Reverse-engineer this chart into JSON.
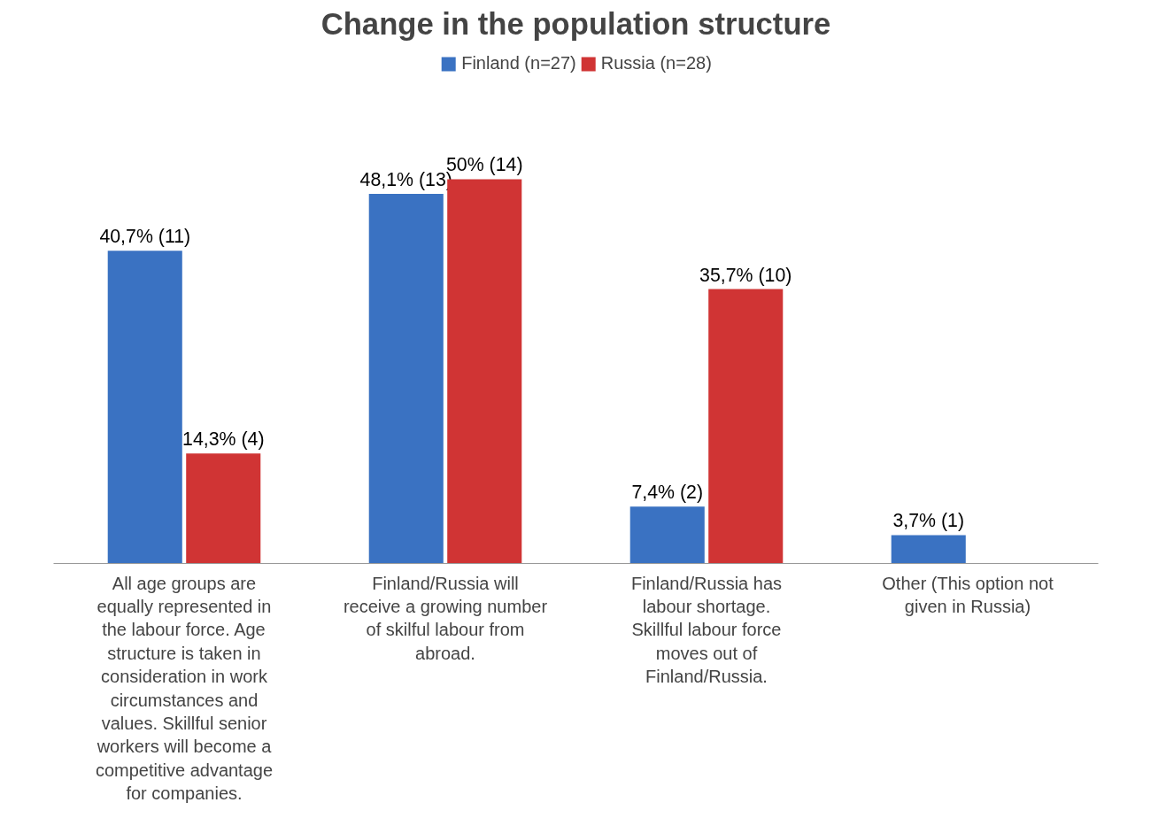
{
  "chart_data": {
    "type": "bar",
    "title": "Change in the population structure",
    "categories": [
      "All age groups are equally represented in the labour force. Age structure is taken in consideration in work circumstances and values. Skillful senior workers will become a competitive advantage for companies.",
      "Finland/Russia will receive a growing number of skilful labour from abroad.",
      "Finland/Russia has labour shortage. Skillful labour force moves out of Finland/Russia.",
      "Other (This option not given in Russia)"
    ],
    "series": [
      {
        "name": "Finland (n=27)",
        "color": "#3a72c2",
        "values": [
          40.7,
          48.1,
          7.4,
          3.7
        ],
        "value_labels": [
          "40,7% (11)",
          "48,1% (13)",
          "7,4% (2)",
          "3,7% (1)"
        ]
      },
      {
        "name": "Russia (n=28)",
        "color": "#d03434",
        "values": [
          14.3,
          50,
          35.7,
          null
        ],
        "value_labels": [
          "14,3% (4)",
          "50% (14)",
          "35,7% (10)",
          null
        ]
      }
    ],
    "legend": "top"
  }
}
